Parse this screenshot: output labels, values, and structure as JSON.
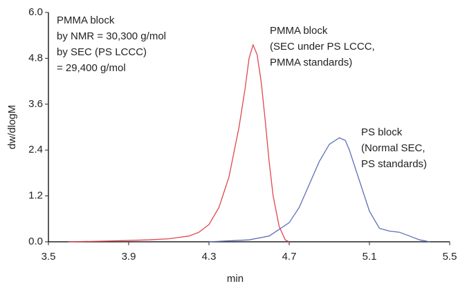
{
  "chart_data": {
    "type": "line",
    "x_label": "min",
    "y_label": "dw/dlogM",
    "xlim": [
      3.5,
      5.5
    ],
    "xticks": [
      3.5,
      3.9,
      4.3,
      4.7,
      5.1,
      5.5
    ],
    "ylim": [
      0,
      6
    ],
    "yticks": [
      {
        "value": 0,
        "label": "0.0"
      },
      1.2,
      2.4,
      3.6,
      4.8,
      {
        "value": 6,
        "label": "6.0"
      }
    ],
    "series": [
      {
        "color": "#e0454f",
        "x": [
          3.6,
          3.8,
          4.0,
          4.1,
          4.2,
          4.25,
          4.3,
          4.35,
          4.4,
          4.45,
          4.48,
          4.5,
          4.52,
          4.54,
          4.56,
          4.58,
          4.6,
          4.62,
          4.65,
          4.68,
          4.7
        ],
        "values": [
          0,
          0.02,
          0.05,
          0.08,
          0.15,
          0.25,
          0.45,
          0.9,
          1.7,
          3.0,
          4.0,
          4.8,
          5.15,
          4.9,
          4.2,
          3.2,
          2.1,
          1.2,
          0.4,
          0.05,
          0
        ]
      },
      {
        "color": "#5b6fb8",
        "x": [
          4.3,
          4.5,
          4.6,
          4.7,
          4.75,
          4.8,
          4.85,
          4.9,
          4.95,
          4.98,
          5.0,
          5.05,
          5.1,
          5.15,
          5.2,
          5.25,
          5.3,
          5.35,
          5.4
        ],
        "values": [
          0,
          0.05,
          0.15,
          0.5,
          0.9,
          1.5,
          2.1,
          2.55,
          2.72,
          2.65,
          2.4,
          1.6,
          0.8,
          0.35,
          0.28,
          0.25,
          0.15,
          0.05,
          0
        ]
      }
    ],
    "annotations": [
      {
        "lines": [
          "PMMA block",
          "by NMR = 30,300 g/mol",
          "by SEC (PS LCCC)",
          "= 29,400 g/mol"
        ]
      },
      {
        "lines": [
          "PMMA block",
          "(SEC under PS LCCC,",
          "PMMA standards)"
        ]
      },
      {
        "lines": [
          "PS block",
          "(Normal SEC,",
          "PS standards)"
        ]
      }
    ]
  }
}
